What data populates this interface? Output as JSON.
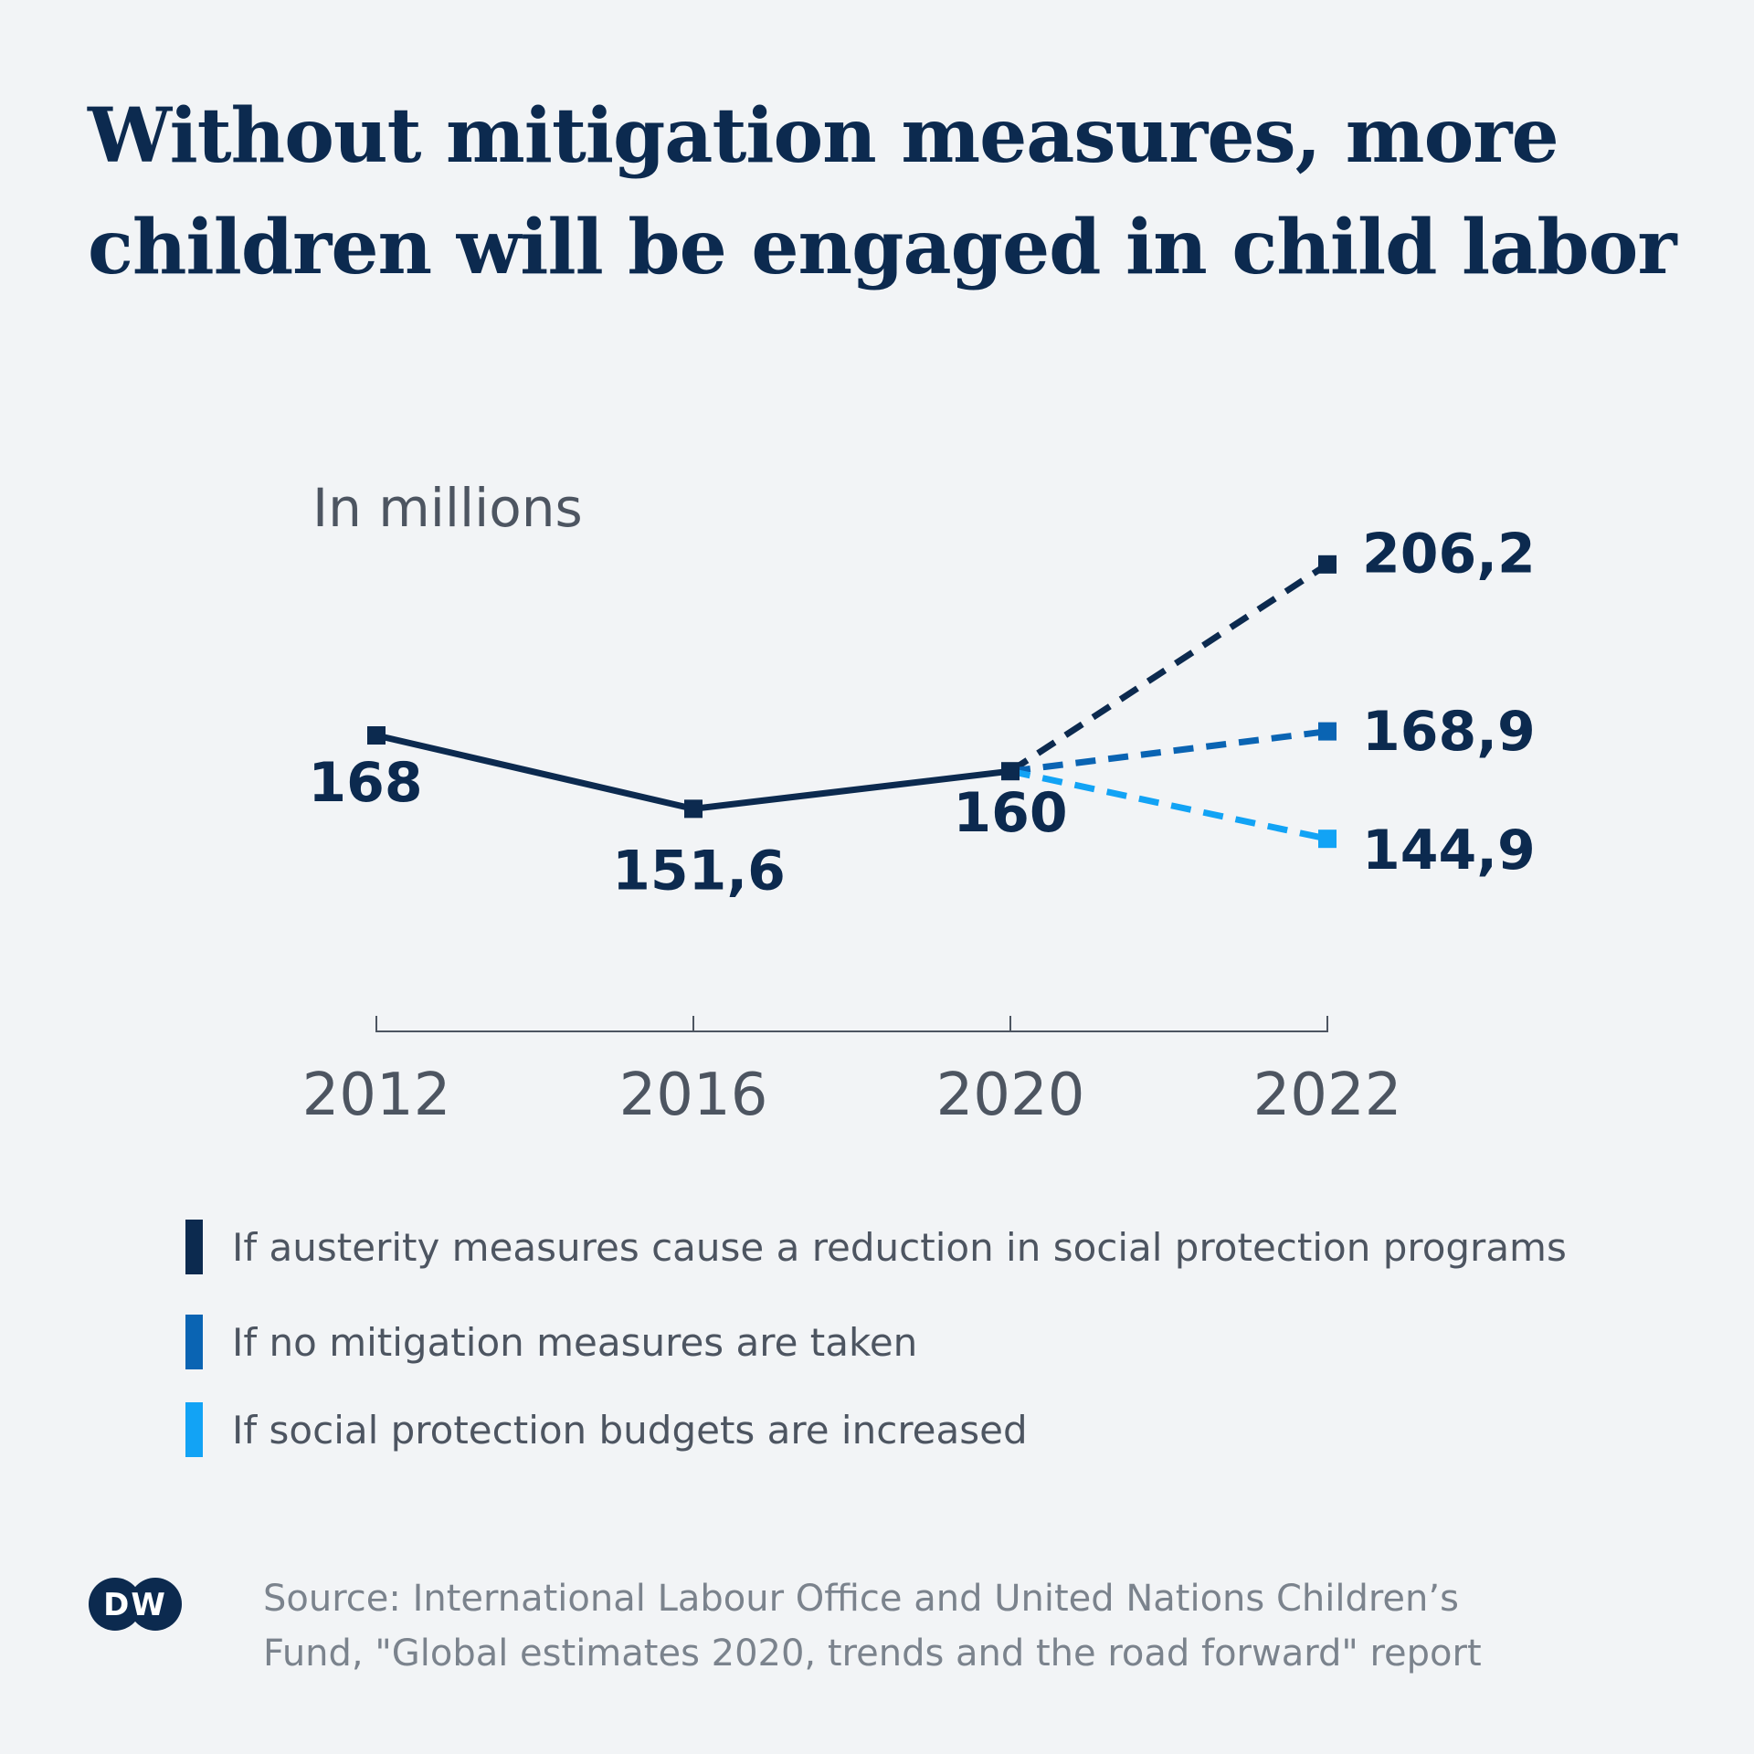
{
  "chart_data": {
    "type": "line",
    "title": "Without mitigation measures, more children will be engaged in child labor",
    "ylabel": "In millions",
    "x": [
      "2012",
      "2016",
      "2020",
      "2022"
    ],
    "ylim": [
      100,
      230
    ],
    "grid": false,
    "legend_position": "bottom",
    "historical": {
      "x": [
        "2012",
        "2016",
        "2020"
      ],
      "values": [
        168,
        151.6,
        160
      ],
      "labels": [
        "168",
        "151,6",
        "160"
      ],
      "color": "#0c2a4f"
    },
    "series": [
      {
        "name": "If austerity measures cause a reduction in social protection programs",
        "x": [
          "2020",
          "2022"
        ],
        "values": [
          160,
          206.2
        ],
        "end_label": "206,2",
        "color": "#0c2a4f",
        "style": "dashed"
      },
      {
        "name": "If no mitigation measures are taken",
        "x": [
          "2020",
          "2022"
        ],
        "values": [
          160,
          168.9
        ],
        "end_label": "168,9",
        "color": "#0a64b3",
        "style": "dashed"
      },
      {
        "name": "If social protection budgets are increased",
        "x": [
          "2020",
          "2022"
        ],
        "values": [
          160,
          144.9
        ],
        "end_label": "144,9",
        "color": "#12a3f5",
        "style": "dashed"
      }
    ]
  },
  "source": {
    "line1": "Source: International Labour Office and United Nations Children’s",
    "line2": "Fund, \"Global estimates 2020, trends and the road forward\" report"
  },
  "logo": {
    "text": "DW"
  }
}
